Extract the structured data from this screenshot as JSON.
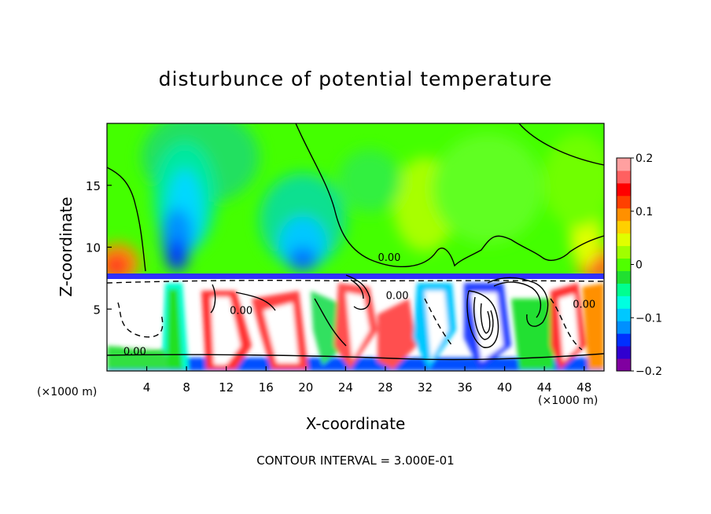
{
  "chart_data": {
    "type": "heatmap",
    "title": "disturbunce of potential temperature",
    "xlabel": "X-coordinate",
    "ylabel": "Z-coordinate",
    "x_unit_label": "(×1000 m)",
    "z_unit_label": "(×1000 m)",
    "xlim": [
      0,
      50
    ],
    "ylim": [
      0,
      20
    ],
    "x_ticks": [
      "4",
      "8",
      "12",
      "16",
      "20",
      "24",
      "28",
      "32",
      "36",
      "40",
      "44",
      "48"
    ],
    "y_ticks": [
      "5",
      "10",
      "15"
    ],
    "colorbar": {
      "range": [
        -0.2,
        0.2
      ],
      "tick_labels": [
        "0.2",
        "0.1",
        "0",
        "−0.1",
        "−0.2"
      ],
      "colors": [
        "#8000a0",
        "#3000d0",
        "#0030ff",
        "#0090ff",
        "#00c8ff",
        "#00ffe0",
        "#00ff90",
        "#20e030",
        "#50ff00",
        "#a0ff00",
        "#e0ff00",
        "#ffd000",
        "#ff9000",
        "#ff4000",
        "#ff0000",
        "#ff6060",
        "#ffa0a0"
      ]
    },
    "contour_label": "0.00",
    "contour_interval_text": "CONTOUR INTERVAL = 3.000E-01"
  }
}
